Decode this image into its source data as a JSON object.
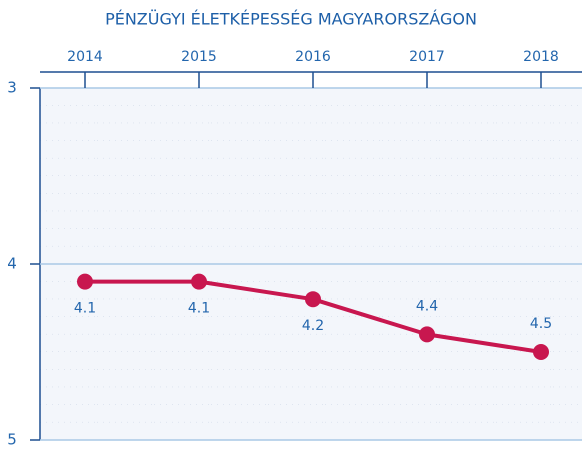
{
  "chart_data": {
    "type": "line",
    "title": "PÉNZÜGYI ÉLETKÉPESSÉG MAGYARORSZÁGON",
    "categories": [
      "2014",
      "2015",
      "2016",
      "2017",
      "2018"
    ],
    "values": [
      4.1,
      4.1,
      4.2,
      4.4,
      4.5
    ],
    "color": "#c8174f",
    "ylim": [
      5,
      3
    ],
    "yticks": [
      3,
      4,
      5
    ],
    "grid": true
  }
}
